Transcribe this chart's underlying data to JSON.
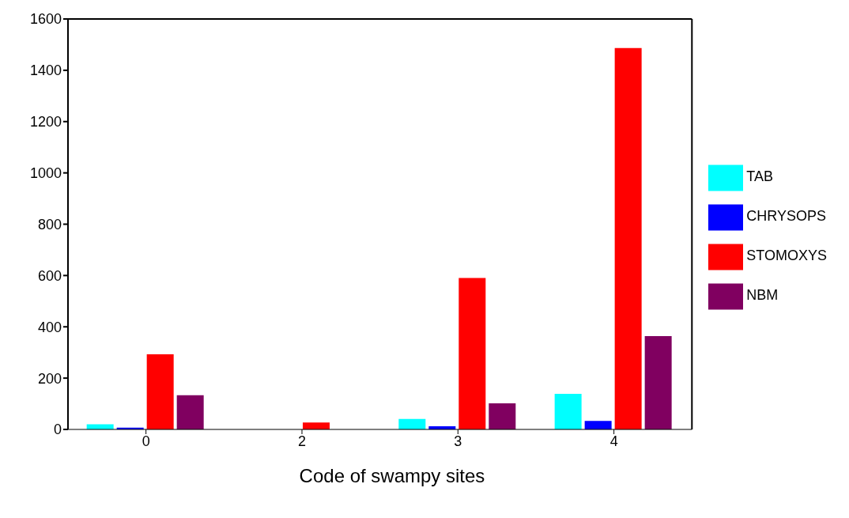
{
  "chart_data": {
    "type": "bar",
    "xlabel": "Code of swampy sites",
    "categories": [
      "0",
      "2",
      "3",
      "4"
    ],
    "series": [
      {
        "name": "TAB",
        "color": "#00ffff",
        "values": [
          20,
          0,
          41,
          139
        ]
      },
      {
        "name": "CHRYSOPS",
        "color": "#0000ff",
        "values": [
          7,
          0,
          12,
          33
        ]
      },
      {
        "name": "STOMOXYS",
        "color": "#ff0000",
        "values": [
          293,
          27,
          590,
          1487
        ]
      },
      {
        "name": "NBM",
        "color": "#800060",
        "values": [
          133,
          0,
          102,
          364
        ]
      }
    ],
    "ylim": [
      0,
      1600
    ],
    "yticks": [
      0,
      200,
      400,
      600,
      800,
      1000,
      1200,
      1400,
      1600
    ],
    "grid": false,
    "legend": "right"
  }
}
